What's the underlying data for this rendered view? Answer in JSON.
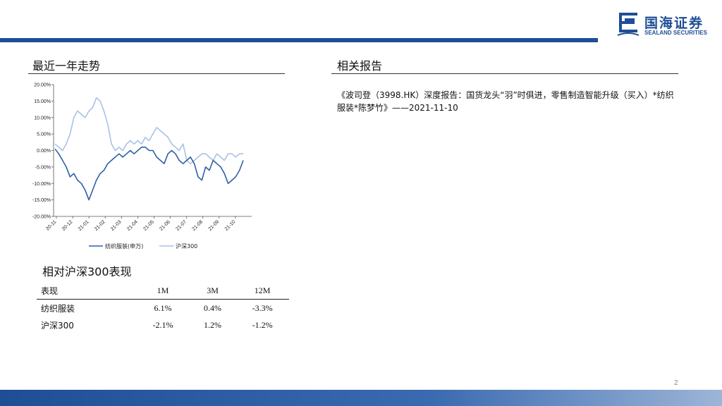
{
  "header": {
    "logo_cn": "国海证券",
    "logo_en": "SEALAND SECURITIES",
    "brand_color": "#1e4e96"
  },
  "left": {
    "trend_title": "最近一年走势",
    "perf_title": "相对沪深300表现"
  },
  "right": {
    "reports_title": "相关报告",
    "report_text": "《波司登（3998.HK）深度报告：国货龙头“羽”时俱进，零售制造智能升级（买入）*纺织服装*陈梦竹》——2021-11-10"
  },
  "chart_data": {
    "type": "line",
    "y_ticks": [
      "20.00%",
      "15.00%",
      "10.00%",
      "5.00%",
      "0.00%",
      "-5.00%",
      "-10.00%",
      "-15.00%",
      "-20.00%"
    ],
    "x_ticks": [
      "20-11",
      "20-12",
      "21-01",
      "21-02",
      "21-03",
      "21-04",
      "21-05",
      "21-06",
      "21-07",
      "21-08",
      "21-09",
      "21-10"
    ],
    "ylim": [
      -20,
      20
    ],
    "series": [
      {
        "name": "纺织服装(申万)",
        "color": "#2f5fa7",
        "values": [
          0.5,
          -1,
          -3,
          -5,
          -8,
          -7,
          -9,
          -10,
          -12,
          -15,
          -12,
          -9,
          -7,
          -6,
          -4,
          -3,
          -2,
          -1,
          -2,
          -1,
          0,
          -1,
          0,
          1,
          1,
          0,
          0,
          -2,
          -3,
          -4,
          -1,
          0,
          -1,
          -3,
          -4,
          -3,
          -2,
          -4,
          -8,
          -9,
          -5,
          -6,
          -3,
          -4,
          -5,
          -7,
          -10,
          -9,
          -8,
          -6,
          -3
        ]
      },
      {
        "name": "沪深300",
        "color": "#a9c2e6",
        "values": [
          2,
          1,
          0,
          2,
          5,
          10,
          12,
          11,
          10,
          12,
          13,
          16,
          15,
          12,
          8,
          2,
          0,
          1,
          0,
          2,
          3,
          2,
          3,
          2,
          4,
          3,
          5,
          7,
          6,
          5,
          4,
          2,
          1,
          0,
          2,
          -3,
          -4,
          -3,
          -2,
          -1,
          -1,
          -2,
          -3,
          -1,
          -2,
          -3,
          -1,
          -1,
          -2,
          -1,
          -1
        ]
      }
    ]
  },
  "perf_table": {
    "headers": [
      "表现",
      "1M",
      "3M",
      "12M"
    ],
    "rows": [
      [
        "纺织服装",
        "6.1%",
        "0.4%",
        "-3.3%"
      ],
      [
        "沪深300",
        "-2.1%",
        "1.2%",
        "-1.2%"
      ]
    ]
  },
  "footer": {
    "page_number": "2"
  }
}
